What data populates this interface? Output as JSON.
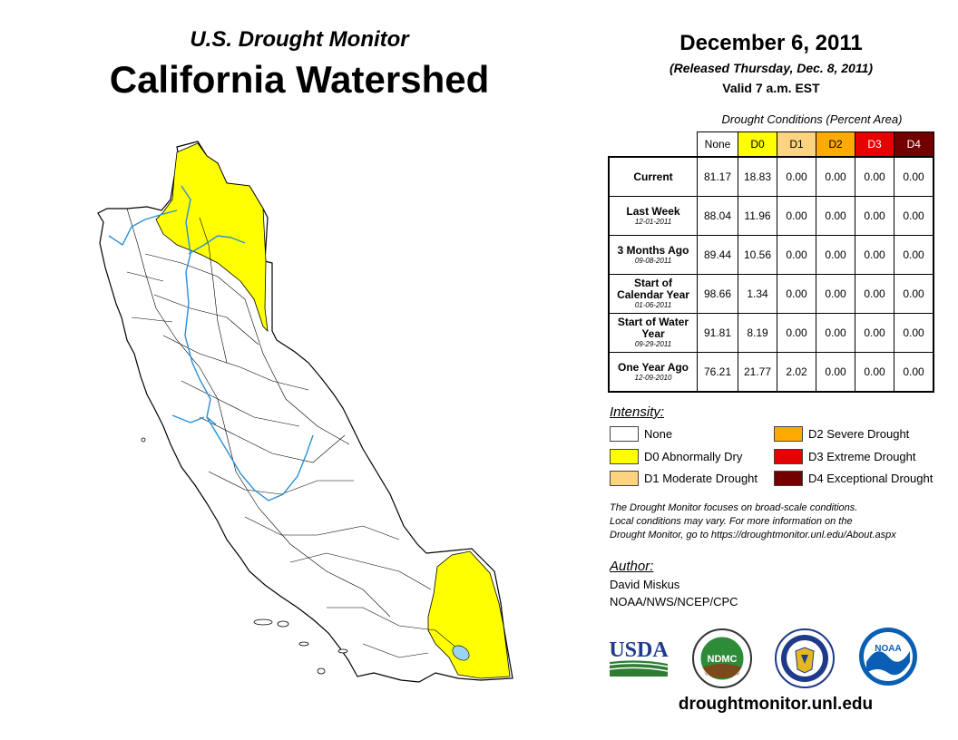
{
  "header": {
    "subtitle": "U.S. Drought Monitor",
    "title": "California Watershed",
    "date": "December 6, 2011",
    "released": "(Released Thursday, Dec. 8, 2011)",
    "valid": "Valid 7 a.m. EST"
  },
  "table": {
    "caption": "Drought Conditions (Percent Area)",
    "columns": [
      {
        "label": "None",
        "color": "#ffffff",
        "text": "#000000"
      },
      {
        "label": "D0",
        "color": "#ffff00",
        "text": "#000000"
      },
      {
        "label": "D1",
        "color": "#fcd37f",
        "text": "#000000"
      },
      {
        "label": "D2",
        "color": "#ffaa00",
        "text": "#000000"
      },
      {
        "label": "D3",
        "color": "#e60000",
        "text": "#ffffff"
      },
      {
        "label": "D4",
        "color": "#730000",
        "text": "#ffffff"
      }
    ],
    "rows": [
      {
        "label": "Current",
        "date": "",
        "values": [
          "81.17",
          "18.83",
          "0.00",
          "0.00",
          "0.00",
          "0.00"
        ]
      },
      {
        "label": "Last Week",
        "date": "12-01-2011",
        "values": [
          "88.04",
          "11.96",
          "0.00",
          "0.00",
          "0.00",
          "0.00"
        ]
      },
      {
        "label": "3 Months Ago",
        "date": "09-08-2011",
        "values": [
          "89.44",
          "10.56",
          "0.00",
          "0.00",
          "0.00",
          "0.00"
        ]
      },
      {
        "label": "Start of Calendar Year",
        "date": "01-06-2011",
        "values": [
          "98.66",
          "1.34",
          "0.00",
          "0.00",
          "0.00",
          "0.00"
        ]
      },
      {
        "label": "Start of Water Year",
        "date": "09-29-2011",
        "values": [
          "91.81",
          "8.19",
          "0.00",
          "0.00",
          "0.00",
          "0.00"
        ]
      },
      {
        "label": "One Year Ago",
        "date": "12-09-2010",
        "values": [
          "76.21",
          "21.77",
          "2.02",
          "0.00",
          "0.00",
          "0.00"
        ]
      }
    ]
  },
  "legend": {
    "title": "Intensity:",
    "items": [
      {
        "label": "None",
        "color": "#ffffff"
      },
      {
        "label": "D0 Abnormally Dry",
        "color": "#ffff00"
      },
      {
        "label": "D1 Moderate Drought",
        "color": "#fcd37f"
      },
      {
        "label": "D2 Severe Drought",
        "color": "#ffaa00"
      },
      {
        "label": "D3 Extreme Drought",
        "color": "#e60000"
      },
      {
        "label": "D4 Exceptional Drought",
        "color": "#730000"
      }
    ]
  },
  "note": {
    "line1": "The Drought Monitor focuses on broad-scale conditions.",
    "line2": "Local conditions may vary. For more information on the",
    "line3": "Drought Monitor, go to https://droughtmonitor.unl.edu/About.aspx"
  },
  "author": {
    "heading": "Author:",
    "name": "David Miskus",
    "org": "NOAA/NWS/NCEP/CPC"
  },
  "logos": {
    "usda": "USDA",
    "ndmc": "NDMC",
    "noaa": "NOAA"
  },
  "footer": {
    "url": "droughtmonitor.unl.edu"
  },
  "colors": {
    "d0": "#ffff00",
    "river": "#2a8fd8",
    "lake": "#9ad4f2",
    "usda_blue": "#1f3a8a",
    "usda_green": "#2e7d32",
    "noaa_blue": "#0a5fb4"
  }
}
